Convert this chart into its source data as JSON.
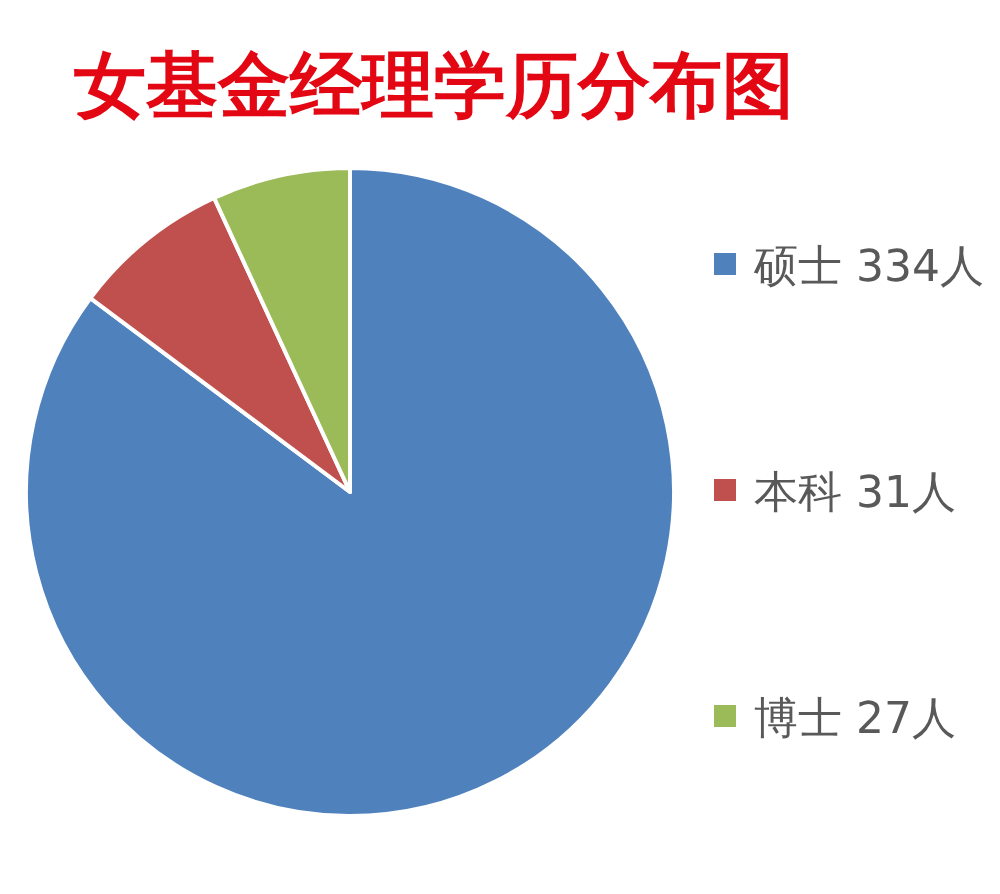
{
  "chart_data": {
    "type": "pie",
    "title": "女基金经理学历分布图",
    "categories": [
      "硕士 334人",
      "本科 31人",
      "博士 27人"
    ],
    "values": [
      334,
      31,
      27
    ],
    "colors": [
      "#4f81bd",
      "#c0504d",
      "#9bbb59"
    ],
    "legend": "right"
  }
}
